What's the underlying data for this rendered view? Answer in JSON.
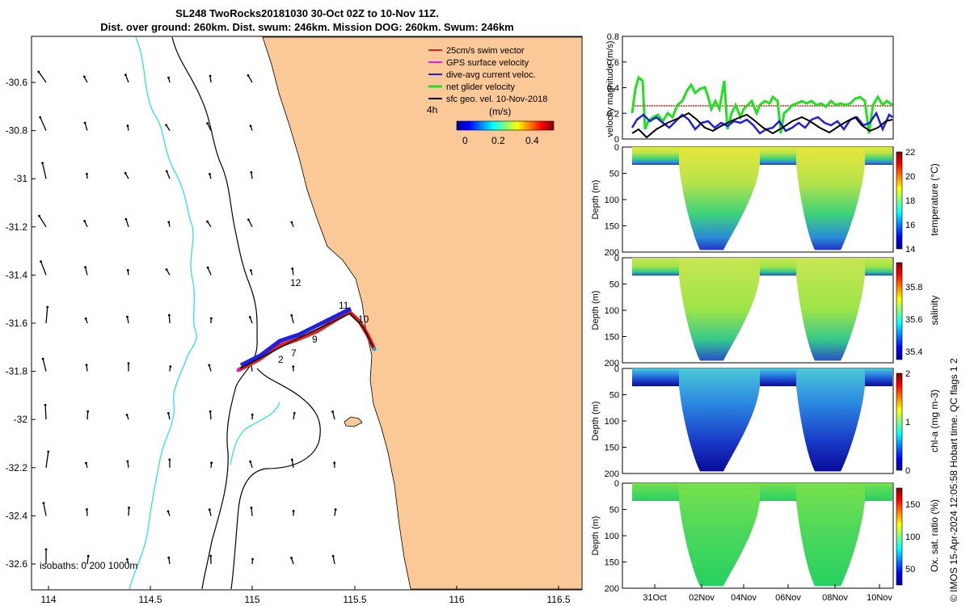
{
  "title": {
    "line1": "SL248 TwoRocks20181030 30-Oct 02Z to 10-Nov 11Z.",
    "line2": "Dist. over ground: 260km. Dist. swum: 246km. Mission DOG: 260km. Swum: 246km"
  },
  "colors": {
    "land": "#fbc997",
    "isobath_shallow": "#40e0e0",
    "isobath_deep": "#000000"
  },
  "map": {
    "x_ticks": [
      "114",
      "114.5",
      "115",
      "115.5",
      "116",
      "116.5"
    ],
    "y_ticks": [
      "-30.6",
      "-30.8",
      "-31",
      "-31.2",
      "-31.4",
      "-31.6",
      "-31.8",
      "-32",
      "-32.2",
      "-32.4",
      "-32.6"
    ],
    "isobath_label": "isobaths: 0   200  1000m",
    "legend": [
      {
        "label": "25cm/s swim vector",
        "color": "#e02020"
      },
      {
        "label": "GPS surface velocity",
        "color": "#e020e0"
      },
      {
        "label": "dive-avg current veloc.",
        "color": "#2020e0"
      },
      {
        "label": "net glider velocity",
        "color": "#20e020"
      },
      {
        "label": "sfc geo. vel. 10-Nov-2018",
        "color": "#000000"
      }
    ],
    "hour_label": "4h",
    "colorbar_label": "(m/s)",
    "colorbar_ticks": [
      "0",
      "0.2",
      "0.4"
    ],
    "day_labels": [
      "2",
      "7",
      "9",
      "10",
      "11",
      "12"
    ]
  },
  "chart_data": [
    {
      "type": "line",
      "ylabel": "velocity magnitude (m/s)",
      "ylim": [
        0,
        0.8
      ],
      "y_ticks": [
        "0",
        "0.2",
        "0.4",
        "0.6",
        "0.8"
      ],
      "series": [
        {
          "name": "net glider velocity",
          "color": "#20e020",
          "approx_mean": 0.22
        },
        {
          "name": "dive-avg current veloc.",
          "color": "#2020e0",
          "approx_mean": 0.12
        },
        {
          "name": "sfc geo. vel.",
          "color": "#000000",
          "approx_mean": 0.1
        },
        {
          "name": "25cm/s swim vector",
          "color": "#e02020",
          "approx_mean": 0.25
        }
      ]
    },
    {
      "type": "heatmap",
      "ylabel": "Depth (m)",
      "cbar_label": "temperature (°C)",
      "y_ticks": [
        "0",
        "50",
        "100",
        "150",
        "200"
      ],
      "cbar_ticks": [
        "14",
        "16",
        "18",
        "20",
        "22"
      ],
      "range": [
        14,
        22
      ]
    },
    {
      "type": "heatmap",
      "ylabel": "Depth (m)",
      "cbar_label": "salinity",
      "y_ticks": [
        "0",
        "50",
        "100",
        "150",
        "200"
      ],
      "cbar_ticks": [
        "35.4",
        "35.6",
        "35.8"
      ],
      "range": [
        35.35,
        35.95
      ]
    },
    {
      "type": "heatmap",
      "ylabel": "Depth (m)",
      "cbar_label": "chl-a (mg m-3)",
      "y_ticks": [
        "0",
        "50",
        "100",
        "150",
        "200"
      ],
      "cbar_ticks": [
        "0",
        "1",
        "2"
      ],
      "range": [
        0,
        2
      ]
    },
    {
      "type": "heatmap",
      "ylabel": "Depth (m)",
      "cbar_label": "Ox. sat. ratio (%)",
      "y_ticks": [
        "0",
        "50",
        "100",
        "150",
        "200"
      ],
      "cbar_ticks": [
        "50",
        "100",
        "150"
      ],
      "range": [
        25,
        175
      ]
    }
  ],
  "time_ticks": [
    "31Oct",
    "02Nov",
    "04Nov",
    "06Nov",
    "08Nov",
    "10Nov"
  ],
  "credit": "© IMOS 15-Apr-2024 12:05:58 Hobart time. QC flags 1  2"
}
